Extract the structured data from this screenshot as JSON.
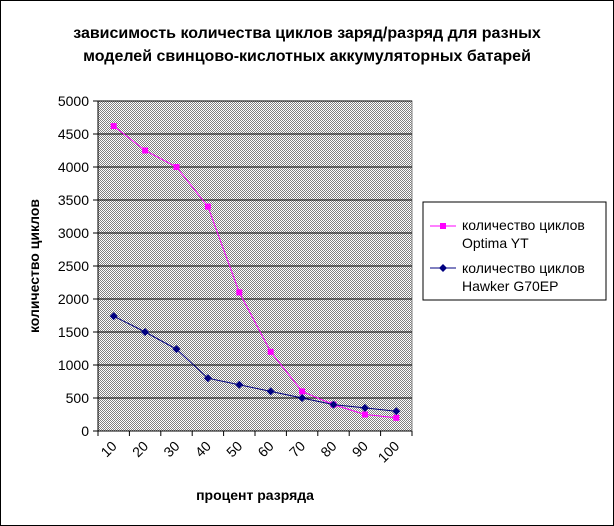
{
  "chart_data": {
    "type": "line",
    "title_lines": [
      "зависимость количества циклов заряд/разряд для разных",
      "моделей свинцово-кислотных аккумуляторных батарей"
    ],
    "xlabel": "процент разряда",
    "ylabel": "количество циклов",
    "categories": [
      "10",
      "20",
      "30",
      "40",
      "50",
      "60",
      "70",
      "80",
      "90",
      "100"
    ],
    "ylim": [
      0,
      5000
    ],
    "yticks": [
      0,
      500,
      1000,
      1500,
      2000,
      2500,
      3000,
      3500,
      4000,
      4500,
      5000
    ],
    "grid": true,
    "legend_position": "right",
    "series": [
      {
        "name_lines": [
          "количество циклов",
          "Optima YT"
        ],
        "color": "#ff00ff",
        "marker": "square",
        "values": [
          4620,
          4250,
          4000,
          3400,
          2100,
          1200,
          600,
          400,
          250,
          200
        ]
      },
      {
        "name_lines": [
          "количество циклов",
          "Hawker G70EP"
        ],
        "color": "#000080",
        "marker": "diamond",
        "values": [
          1740,
          1500,
          1240,
          800,
          700,
          600,
          500,
          400,
          350,
          300
        ]
      }
    ]
  }
}
